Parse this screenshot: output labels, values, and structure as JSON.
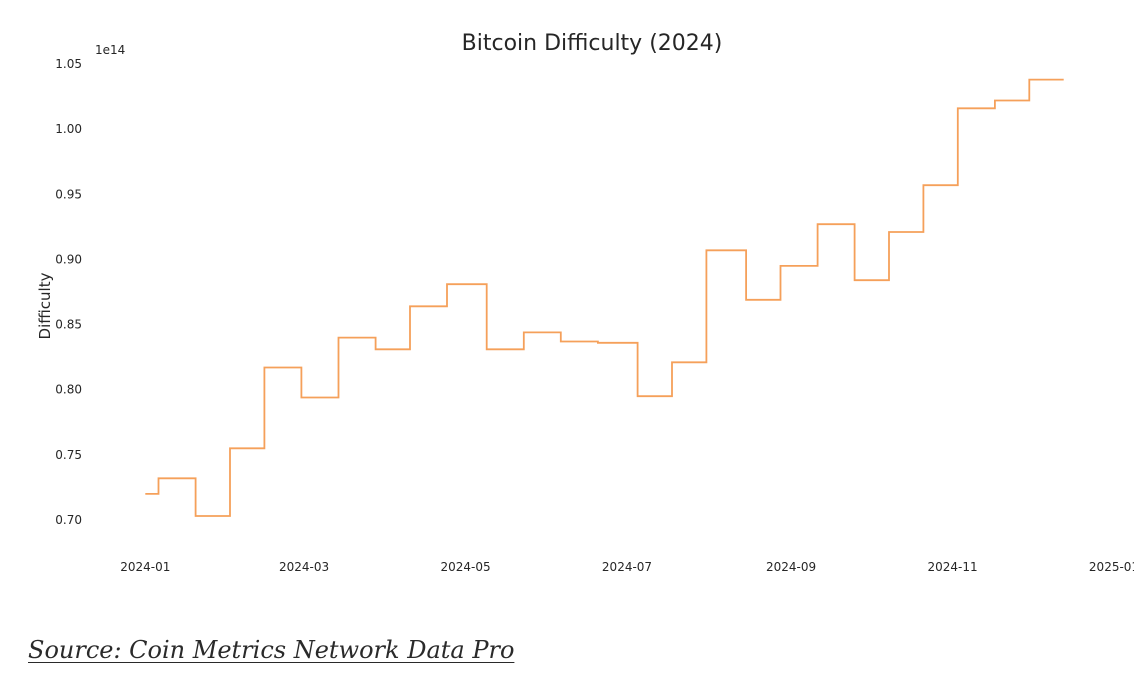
{
  "chart_data": {
    "type": "line",
    "step": true,
    "title": "Bitcoin Difficulty (2024)",
    "xlabel": "",
    "ylabel": "Difficulty",
    "y_offset_label": "1e14",
    "y_scale": 100000000000000.0,
    "ylim": [
      0.68,
      1.05
    ],
    "xlim": [
      "2023-12-13",
      "2025-01-01"
    ],
    "grid": false,
    "line_color": "#f5a05a",
    "x_ticks": [
      "2024-01-01",
      "2024-03-01",
      "2024-05-01",
      "2024-07-01",
      "2024-09-01",
      "2024-11-01",
      "2025-01-01"
    ],
    "x_tick_labels": [
      "2024-01",
      "2024-03",
      "2024-05",
      "2024-07",
      "2024-09",
      "2024-11",
      "2025-01"
    ],
    "y_ticks": [
      0.7,
      0.75,
      0.8,
      0.85,
      0.9,
      0.95,
      1.0,
      1.05
    ],
    "y_tick_labels": [
      "0.70",
      "0.75",
      "0.80",
      "0.85",
      "0.90",
      "0.95",
      "1.00",
      "1.05"
    ],
    "series": [
      {
        "x": [
          "2024-01-01",
          "2024-01-06",
          "2024-01-20",
          "2024-02-02",
          "2024-02-15",
          "2024-02-29",
          "2024-03-14",
          "2024-03-28",
          "2024-04-10",
          "2024-04-24",
          "2024-05-09",
          "2024-05-23",
          "2024-06-06",
          "2024-06-20",
          "2024-07-05",
          "2024-07-18",
          "2024-07-31",
          "2024-08-15",
          "2024-08-28",
          "2024-09-11",
          "2024-09-25",
          "2024-10-08",
          "2024-10-21",
          "2024-11-03",
          "2024-11-17",
          "2024-11-30",
          "2024-12-13"
        ],
        "y": [
          0.72,
          0.732,
          0.703,
          0.755,
          0.817,
          0.794,
          0.84,
          0.831,
          0.864,
          0.881,
          0.831,
          0.844,
          0.837,
          0.836,
          0.795,
          0.821,
          0.907,
          0.869,
          0.895,
          0.927,
          0.884,
          0.921,
          0.957,
          1.016,
          1.022,
          1.038,
          1.038
        ]
      }
    ]
  },
  "source_text": "Source: Coin Metrics Network Data Pro"
}
